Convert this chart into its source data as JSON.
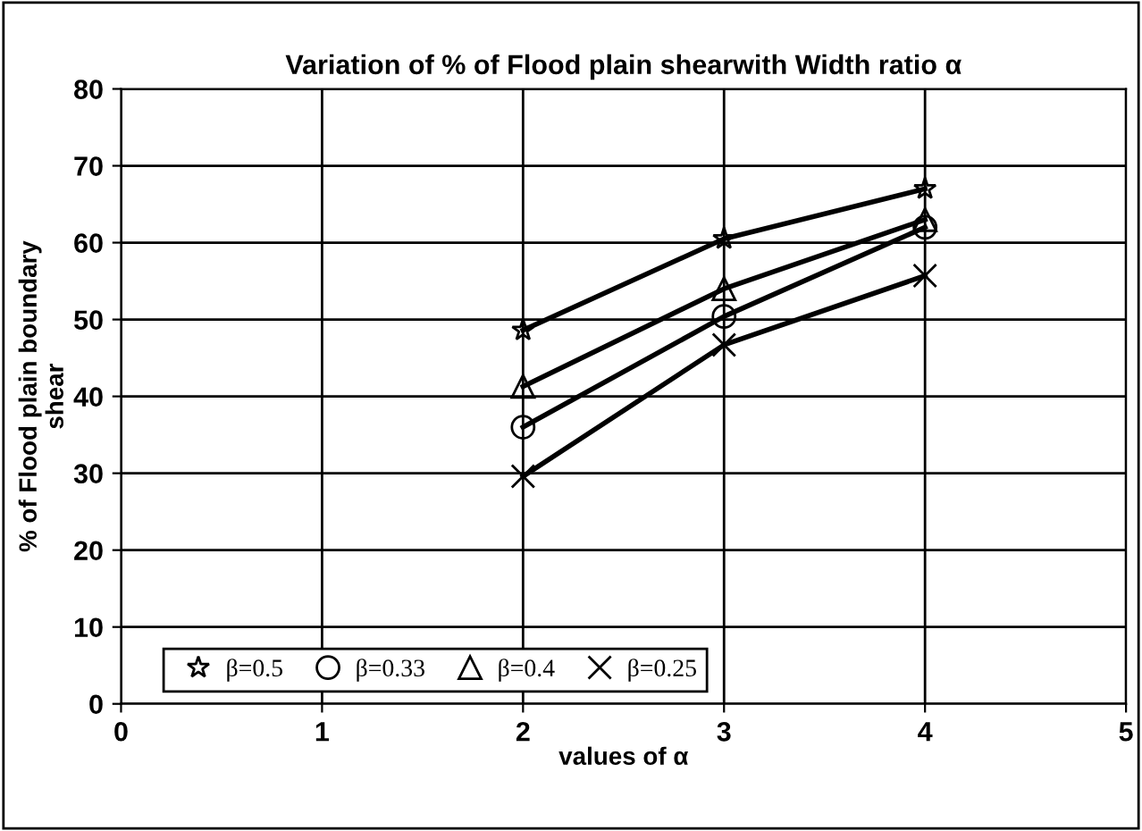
{
  "chart_data": {
    "type": "line",
    "title": "Variation of % of Flood plain shearwith Width ratio α",
    "xlabel": "values of α",
    "ylabel": "% of Flood plain boundary\nshear",
    "x": [
      2,
      3,
      4
    ],
    "series": [
      {
        "name": "β=0.5",
        "color": "#000000",
        "marker": "star",
        "values": [
          48.6,
          60.5,
          67
        ]
      },
      {
        "name": "β=0.33",
        "color": "#000000",
        "marker": "circle",
        "values": [
          36,
          50.4,
          62
        ]
      },
      {
        "name": "β=0.4",
        "color": "#000000",
        "marker": "triangle",
        "values": [
          41.3,
          54,
          63
        ]
      },
      {
        "name": "β=0.25",
        "color": "#000000",
        "marker": "cross",
        "values": [
          29.6,
          46.7,
          55.7
        ]
      }
    ],
    "xlim": [
      0,
      5
    ],
    "xticks": [
      0,
      1,
      2,
      3,
      4,
      5
    ],
    "ylim": [
      0,
      80
    ],
    "yticks": [
      0,
      10,
      20,
      30,
      40,
      50,
      60,
      70,
      80
    ],
    "grid": true,
    "legend": "bottom left",
    "line_style": "solid"
  }
}
